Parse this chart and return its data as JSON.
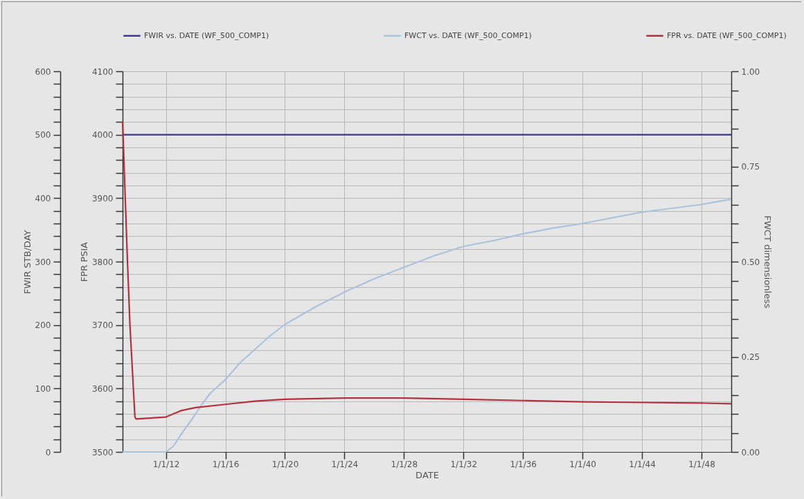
{
  "chart_data": {
    "type": "line",
    "xlabel": "DATE",
    "ylabel": "FWIR STB/DAY",
    "y2label": "FWCT dimensionless",
    "y3label": "FPR PSIA",
    "xlim": [
      "2009-02",
      "2050-01"
    ],
    "xticks": [
      {
        "value": "2012-01-01",
        "label": "1/1/12"
      },
      {
        "value": "2016-01-01",
        "label": "1/1/16"
      },
      {
        "value": "2020-01-01",
        "label": "1/1/20"
      },
      {
        "value": "2024-01-01",
        "label": "1/1/24"
      },
      {
        "value": "2028-01-01",
        "label": "1/1/28"
      },
      {
        "value": "2032-01-01",
        "label": "1/1/32"
      },
      {
        "value": "2036-01-01",
        "label": "1/1/36"
      },
      {
        "value": "2040-01-01",
        "label": "1/1/40"
      },
      {
        "value": "2044-01-01",
        "label": "1/1/44"
      },
      {
        "value": "2048-01-01",
        "label": "1/1/48"
      }
    ],
    "ylim": [
      0,
      600
    ],
    "yticks": [
      0,
      {
        "value": 20,
        "label": null
      },
      {
        "value": 40,
        "label": null
      },
      {
        "value": 60,
        "label": null
      },
      {
        "value": 80,
        "label": null
      },
      100,
      {
        "value": 120,
        "label": null
      },
      {
        "value": 140,
        "label": null
      },
      {
        "value": 160,
        "label": null
      },
      {
        "value": 180,
        "label": null
      },
      200,
      {
        "value": 220,
        "label": null
      },
      {
        "value": 240,
        "label": null
      },
      {
        "value": 260,
        "label": null
      },
      {
        "value": 280,
        "label": null
      },
      300,
      {
        "value": 320,
        "label": null
      },
      {
        "value": 340,
        "label": null
      },
      {
        "value": 360,
        "label": null
      },
      {
        "value": 380,
        "label": null
      },
      400,
      {
        "value": 420,
        "label": null
      },
      {
        "value": 440,
        "label": null
      },
      {
        "value": 460,
        "label": null
      },
      {
        "value": 480,
        "label": null
      },
      500,
      {
        "value": 520,
        "label": null
      },
      {
        "value": 540,
        "label": null
      },
      {
        "value": 560,
        "label": null
      },
      {
        "value": 580,
        "label": null
      },
      600
    ],
    "y2lim": [
      0,
      1
    ],
    "y2ticks": [
      {
        "value": 0,
        "label": "0.00"
      },
      {
        "value": 0.05,
        "label": null
      },
      {
        "value": 0.1,
        "label": null
      },
      {
        "value": 0.15,
        "label": null
      },
      {
        "value": 0.2,
        "label": null
      },
      {
        "value": 0.25,
        "label": "0.25"
      },
      {
        "value": 0.3,
        "label": null
      },
      {
        "value": 0.35,
        "label": null
      },
      {
        "value": 0.4,
        "label": null
      },
      {
        "value": 0.45,
        "label": null
      },
      {
        "value": 0.5,
        "label": "0.50"
      },
      {
        "value": 0.55,
        "label": null
      },
      {
        "value": 0.6,
        "label": null
      },
      {
        "value": 0.65,
        "label": null
      },
      {
        "value": 0.7,
        "label": null
      },
      {
        "value": 0.75,
        "label": "0.75"
      },
      {
        "value": 0.8,
        "label": null
      },
      {
        "value": 0.85,
        "label": null
      },
      {
        "value": 0.9,
        "label": null
      },
      {
        "value": 0.95,
        "label": null
      },
      {
        "value": 1,
        "label": "1.00"
      }
    ],
    "y3lim": [
      3500,
      4100
    ],
    "y3ticks": [
      3500,
      {
        "value": 3520,
        "label": null
      },
      {
        "value": 3540,
        "label": null
      },
      {
        "value": 3560,
        "label": null
      },
      {
        "value": 3580,
        "label": null
      },
      3600,
      {
        "value": 3620,
        "label": null
      },
      {
        "value": 3640,
        "label": null
      },
      {
        "value": 3660,
        "label": null
      },
      {
        "value": 3680,
        "label": null
      },
      3700,
      {
        "value": 3720,
        "label": null
      },
      {
        "value": 3740,
        "label": null
      },
      {
        "value": 3760,
        "label": null
      },
      {
        "value": 3780,
        "label": null
      },
      3800,
      {
        "value": 3820,
        "label": null
      },
      {
        "value": 3840,
        "label": null
      },
      {
        "value": 3860,
        "label": null
      },
      {
        "value": 3880,
        "label": null
      },
      3900,
      {
        "value": 3920,
        "label": null
      },
      {
        "value": 3940,
        "label": null
      },
      {
        "value": 3960,
        "label": null
      },
      {
        "value": 3980,
        "label": null
      },
      4000,
      {
        "value": 4020,
        "label": null
      },
      {
        "value": 4040,
        "label": null
      },
      {
        "value": 4060,
        "label": null
      },
      {
        "value": 4080,
        "label": null
      },
      4100
    ],
    "grid": true,
    "legend": "top",
    "series": [
      {
        "name": "FWIR vs. DATE (WF_500_COMP1)",
        "color": "#3d3b8e",
        "axis": "y",
        "x": [
          "2009-02",
          "2050-01"
        ],
        "values": [
          500,
          500
        ]
      },
      {
        "name": "FWCT vs. DATE (WF_500_COMP1)",
        "color": "#a9c3dd",
        "axis": "y2",
        "x": [
          "2009-02",
          "2012-01",
          "2012-07",
          "2013-01",
          "2014-01",
          "2014-06",
          "2015-01",
          "2016-01",
          "2017-01",
          "2018-01",
          "2019-01",
          "2020-01",
          "2022-01",
          "2024-01",
          "2026-01",
          "2028-01",
          "2030-01",
          "2032-01",
          "2034-01",
          "2036-01",
          "2038-01",
          "2040-01",
          "2042-01",
          "2044-01",
          "2046-01",
          "2048-01",
          "2050-01"
        ],
        "values": [
          0,
          0,
          0.015,
          0.045,
          0.1,
          0.125,
          0.155,
          0.19,
          0.235,
          0.27,
          0.305,
          0.335,
          0.38,
          0.42,
          0.455,
          0.485,
          0.515,
          0.54,
          0.555,
          0.573,
          0.588,
          0.6,
          0.615,
          0.63,
          0.64,
          0.65,
          0.664
        ]
      },
      {
        "name": "FPR vs. DATE (WF_500_COMP1)",
        "color": "#b3303c",
        "axis": "y3",
        "x": [
          "2009-02",
          "2009-03",
          "2009-06",
          "2009-08",
          "2009-12",
          "2010-01",
          "2012-01",
          "2013-01",
          "2014-01",
          "2016-01",
          "2018-01",
          "2020-01",
          "2024-01",
          "2028-01",
          "2032-01",
          "2036-01",
          "2040-01",
          "2044-01",
          "2048-01",
          "2050-01"
        ],
        "values": [
          4020,
          3970,
          3800,
          3700,
          3555,
          3552,
          3555,
          3565,
          3570,
          3575,
          3580,
          3583,
          3585,
          3585,
          3583,
          3581,
          3579,
          3578,
          3577,
          3576
        ]
      }
    ]
  }
}
